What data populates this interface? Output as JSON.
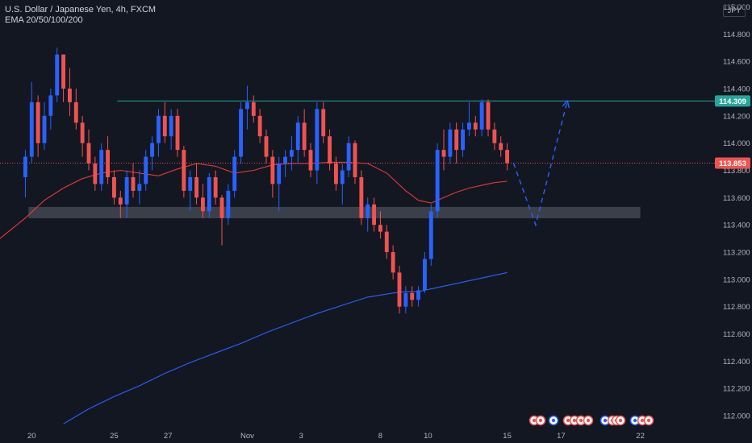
{
  "header": {
    "symbol_line": "U.S. Dollar / Japanese Yen, 4h, FXCM",
    "indicator_line": "EMA 20/50/100/200",
    "currency_badge": "JPY"
  },
  "colors": {
    "background": "#131722",
    "up": "#2962ff",
    "down": "#ef5350",
    "ema_50": "#e53935",
    "ema_200": "#2962ff",
    "resistance": "#26a69a",
    "support_zone": "#434651",
    "current_price": "#ef5350"
  },
  "chart_data": {
    "type": "candlestick",
    "title": "U.S. Dollar / Japanese Yen, 4h, FXCM",
    "y_ticks": [
      112.0,
      112.2,
      112.4,
      112.6,
      112.8,
      113.0,
      113.2,
      113.4,
      113.6,
      113.8,
      114.0,
      114.2,
      114.4,
      114.6,
      114.8,
      115.0
    ],
    "y_tick_labels": [
      "112.000",
      "112.200",
      "112.400",
      "112.600",
      "112.800",
      "113.000",
      "113.200",
      "113.400",
      "113.600",
      "113.800",
      "114.000",
      "114.200",
      "114.400",
      "114.600",
      "114.800",
      "115.000"
    ],
    "ylim": [
      111.9,
      115.05
    ],
    "x_tick_labels": [
      "20",
      "25",
      "27",
      "Nov",
      "3",
      "8",
      "10",
      "15",
      "17",
      "22"
    ],
    "x_tick_positions": [
      1,
      14,
      22.5,
      35,
      43.5,
      56,
      63.5,
      76,
      84.5,
      97
    ],
    "xlim": [
      -4,
      108
    ],
    "candles": [
      [
        113.75,
        113.95,
        113.6,
        113.9
      ],
      [
        113.9,
        114.45,
        113.85,
        114.3
      ],
      [
        114.3,
        114.35,
        113.9,
        114.0
      ],
      [
        114.0,
        114.3,
        113.95,
        114.2
      ],
      [
        114.2,
        114.4,
        114.1,
        114.35
      ],
      [
        114.35,
        114.7,
        114.3,
        114.65
      ],
      [
        114.65,
        114.65,
        114.3,
        114.4
      ],
      [
        114.4,
        114.55,
        114.2,
        114.3
      ],
      [
        114.3,
        114.4,
        114.1,
        114.15
      ],
      [
        114.15,
        114.2,
        113.9,
        114.0
      ],
      [
        114.0,
        114.1,
        113.8,
        113.85
      ],
      [
        113.85,
        113.9,
        113.65,
        113.7
      ],
      [
        113.7,
        114.0,
        113.65,
        113.95
      ],
      [
        113.95,
        114.05,
        113.7,
        113.75
      ],
      [
        113.75,
        113.8,
        113.55,
        113.6
      ],
      [
        113.6,
        113.65,
        113.45,
        113.55
      ],
      [
        113.55,
        113.8,
        113.45,
        113.75
      ],
      [
        113.75,
        113.85,
        113.6,
        113.65
      ],
      [
        113.65,
        113.8,
        113.55,
        113.7
      ],
      [
        113.7,
        113.95,
        113.65,
        113.9
      ],
      [
        113.9,
        114.05,
        113.8,
        114.0
      ],
      [
        114.0,
        114.25,
        113.9,
        114.2
      ],
      [
        114.2,
        114.3,
        114.0,
        114.05
      ],
      [
        114.05,
        114.25,
        113.95,
        114.2
      ],
      [
        114.2,
        114.25,
        113.9,
        113.95
      ],
      [
        113.95,
        113.98,
        113.6,
        113.65
      ],
      [
        113.65,
        113.8,
        113.5,
        113.75
      ],
      [
        113.75,
        113.85,
        113.55,
        113.6
      ],
      [
        113.6,
        113.7,
        113.45,
        113.5
      ],
      [
        113.5,
        113.78,
        113.45,
        113.75
      ],
      [
        113.75,
        113.8,
        113.55,
        113.6
      ],
      [
        113.6,
        113.62,
        113.25,
        113.45
      ],
      [
        113.45,
        113.7,
        113.4,
        113.65
      ],
      [
        113.65,
        113.95,
        113.6,
        113.9
      ],
      [
        113.9,
        114.3,
        113.85,
        114.25
      ],
      [
        114.25,
        114.42,
        114.1,
        114.3
      ],
      [
        114.3,
        114.35,
        114.15,
        114.2
      ],
      [
        114.2,
        114.25,
        114.0,
        114.05
      ],
      [
        114.05,
        114.1,
        113.85,
        113.9
      ],
      [
        113.9,
        113.95,
        113.6,
        113.7
      ],
      [
        113.7,
        113.9,
        113.5,
        113.85
      ],
      [
        113.85,
        113.95,
        113.75,
        113.9
      ],
      [
        113.9,
        114.05,
        113.8,
        113.95
      ],
      [
        113.95,
        114.2,
        113.85,
        114.15
      ],
      [
        114.15,
        114.25,
        113.9,
        113.95
      ],
      [
        113.95,
        114.0,
        113.75,
        113.8
      ],
      [
        113.8,
        114.3,
        113.7,
        114.25
      ],
      [
        114.25,
        114.3,
        114.0,
        114.05
      ],
      [
        114.05,
        114.1,
        113.8,
        113.85
      ],
      [
        113.85,
        113.9,
        113.65,
        113.7
      ],
      [
        113.7,
        113.85,
        113.55,
        113.8
      ],
      [
        113.8,
        114.05,
        113.75,
        114.0
      ],
      [
        114.0,
        114.02,
        113.7,
        113.75
      ],
      [
        113.75,
        113.8,
        113.4,
        113.45
      ],
      [
        113.45,
        113.6,
        113.35,
        113.55
      ],
      [
        113.55,
        113.6,
        113.35,
        113.4
      ],
      [
        113.4,
        113.5,
        113.3,
        113.35
      ],
      [
        113.35,
        113.4,
        113.15,
        113.2
      ],
      [
        113.2,
        113.25,
        113.0,
        113.05
      ],
      [
        113.05,
        113.1,
        112.75,
        112.8
      ],
      [
        112.8,
        112.95,
        112.75,
        112.9
      ],
      [
        112.9,
        112.95,
        112.8,
        112.85
      ],
      [
        112.85,
        112.95,
        112.8,
        112.92
      ],
      [
        112.92,
        113.2,
        112.9,
        113.15
      ],
      [
        113.15,
        113.55,
        113.1,
        113.5
      ],
      [
        113.5,
        114.0,
        113.45,
        113.95
      ],
      [
        113.95,
        114.1,
        113.8,
        113.9
      ],
      [
        113.9,
        114.15,
        113.85,
        114.1
      ],
      [
        114.1,
        114.15,
        113.85,
        113.95
      ],
      [
        113.95,
        114.15,
        113.9,
        114.1
      ],
      [
        114.1,
        114.3,
        114.05,
        114.15
      ],
      [
        114.15,
        114.2,
        114.05,
        114.1
      ],
      [
        114.1,
        114.32,
        114.05,
        114.3
      ],
      [
        114.3,
        114.32,
        114.05,
        114.1
      ],
      [
        114.1,
        114.15,
        113.95,
        114.0
      ],
      [
        114.0,
        114.05,
        113.9,
        113.95
      ],
      [
        113.95,
        114.0,
        113.8,
        113.853
      ]
    ],
    "ema_50": {
      "name": "EMA 50",
      "x": [
        -4,
        0,
        3,
        6,
        9,
        12,
        15,
        18,
        21,
        24,
        27,
        30,
        33,
        36,
        39,
        42,
        45,
        48,
        51,
        54,
        57,
        60,
        62,
        64,
        66,
        68,
        70,
        72,
        74,
        76
      ],
      "values": [
        113.3,
        113.45,
        113.58,
        113.67,
        113.74,
        113.78,
        113.8,
        113.78,
        113.76,
        113.81,
        113.85,
        113.83,
        113.78,
        113.8,
        113.84,
        113.85,
        113.85,
        113.86,
        113.86,
        113.85,
        113.78,
        113.65,
        113.58,
        113.56,
        113.6,
        113.64,
        113.67,
        113.69,
        113.71,
        113.72
      ]
    },
    "ema_200": {
      "name": "EMA 200",
      "x": [
        6,
        10,
        14,
        18,
        22,
        26,
        30,
        34,
        38,
        42,
        46,
        50,
        54,
        58,
        60,
        62,
        64,
        66,
        68,
        70,
        72,
        74,
        76
      ],
      "values": [
        111.94,
        112.05,
        112.14,
        112.22,
        112.31,
        112.39,
        112.46,
        112.53,
        112.61,
        112.68,
        112.75,
        112.81,
        112.87,
        112.9,
        112.91,
        112.91,
        112.93,
        112.95,
        112.97,
        112.99,
        113.01,
        113.03,
        113.05
      ]
    },
    "resistance_line": {
      "start_x": 14.5,
      "value": 114.309
    },
    "support_zone": {
      "start_x": 0.5,
      "end_x": 97,
      "low": 113.46,
      "high": 113.52
    },
    "projection_path": {
      "x": [
        77,
        80.5,
        85.5
      ],
      "values": [
        113.853,
        113.4,
        114.31
      ]
    },
    "current_price": 113.853,
    "price_labels": [
      {
        "label": "114.309",
        "value": 114.309,
        "color": "#26a69a"
      },
      {
        "label": "113.853",
        "value": 113.853,
        "color": "#ef5350"
      }
    ]
  }
}
